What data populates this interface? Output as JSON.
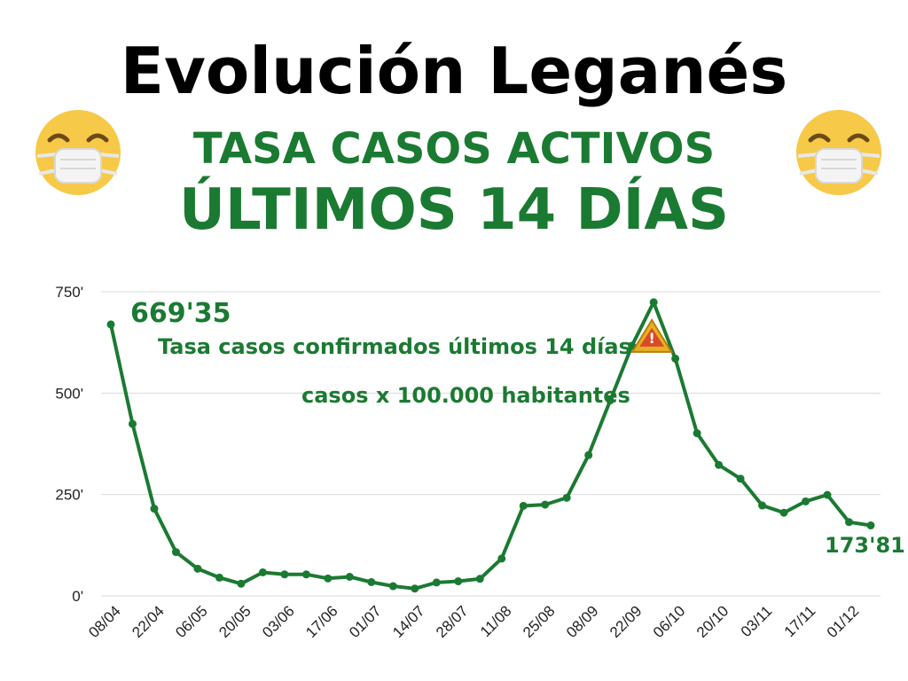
{
  "header": {
    "title": "Evolución Leganés",
    "subtitle_line1": "TASA CASOS ACTIVOS",
    "subtitle_line2": "ÚLTIMOS 14 DÍAS",
    "emoji_icon": "face-with-medical-mask-icon"
  },
  "colors": {
    "line": "#1b7a32",
    "text_green": "#1b7a32",
    "grid": "#d9d9d9",
    "emoji_face": "#f7c948",
    "warning_fill": "#e8b020",
    "warning_inner": "#d84a2a"
  },
  "chart_data": {
    "type": "line",
    "title": "",
    "xlabel": "",
    "ylabel": "",
    "ylim": [
      0,
      750
    ],
    "y_ticks": [
      0,
      250,
      500,
      750
    ],
    "y_tick_labels": [
      "0'",
      "250'",
      "500'",
      "750'"
    ],
    "grid": true,
    "x_tick_labels": [
      "08/04",
      "22/04",
      "06/05",
      "20/05",
      "03/06",
      "17/06",
      "01/07",
      "14/07",
      "28/07",
      "11/08",
      "25/08",
      "08/09",
      "22/09",
      "06/10",
      "20/10",
      "03/11",
      "17/11",
      "01/12"
    ],
    "series": [
      {
        "values": [
          669.35,
          424,
          215,
          108,
          67,
          45,
          30,
          58,
          53,
          53,
          43,
          47,
          34,
          24,
          18,
          33,
          36,
          42,
          92,
          222,
          225,
          242,
          347,
          482,
          617,
          724,
          585,
          401,
          323,
          289,
          223,
          205,
          233,
          249,
          182,
          173.81
        ]
      }
    ],
    "annotations": {
      "first_value": "669'35",
      "last_value": "173'81",
      "description_line1": "Tasa casos confirmados últimos 14 días",
      "description_line2": "casos x 100.000 habitantes"
    },
    "peak_marker_icon": "warning-triangle-icon"
  }
}
